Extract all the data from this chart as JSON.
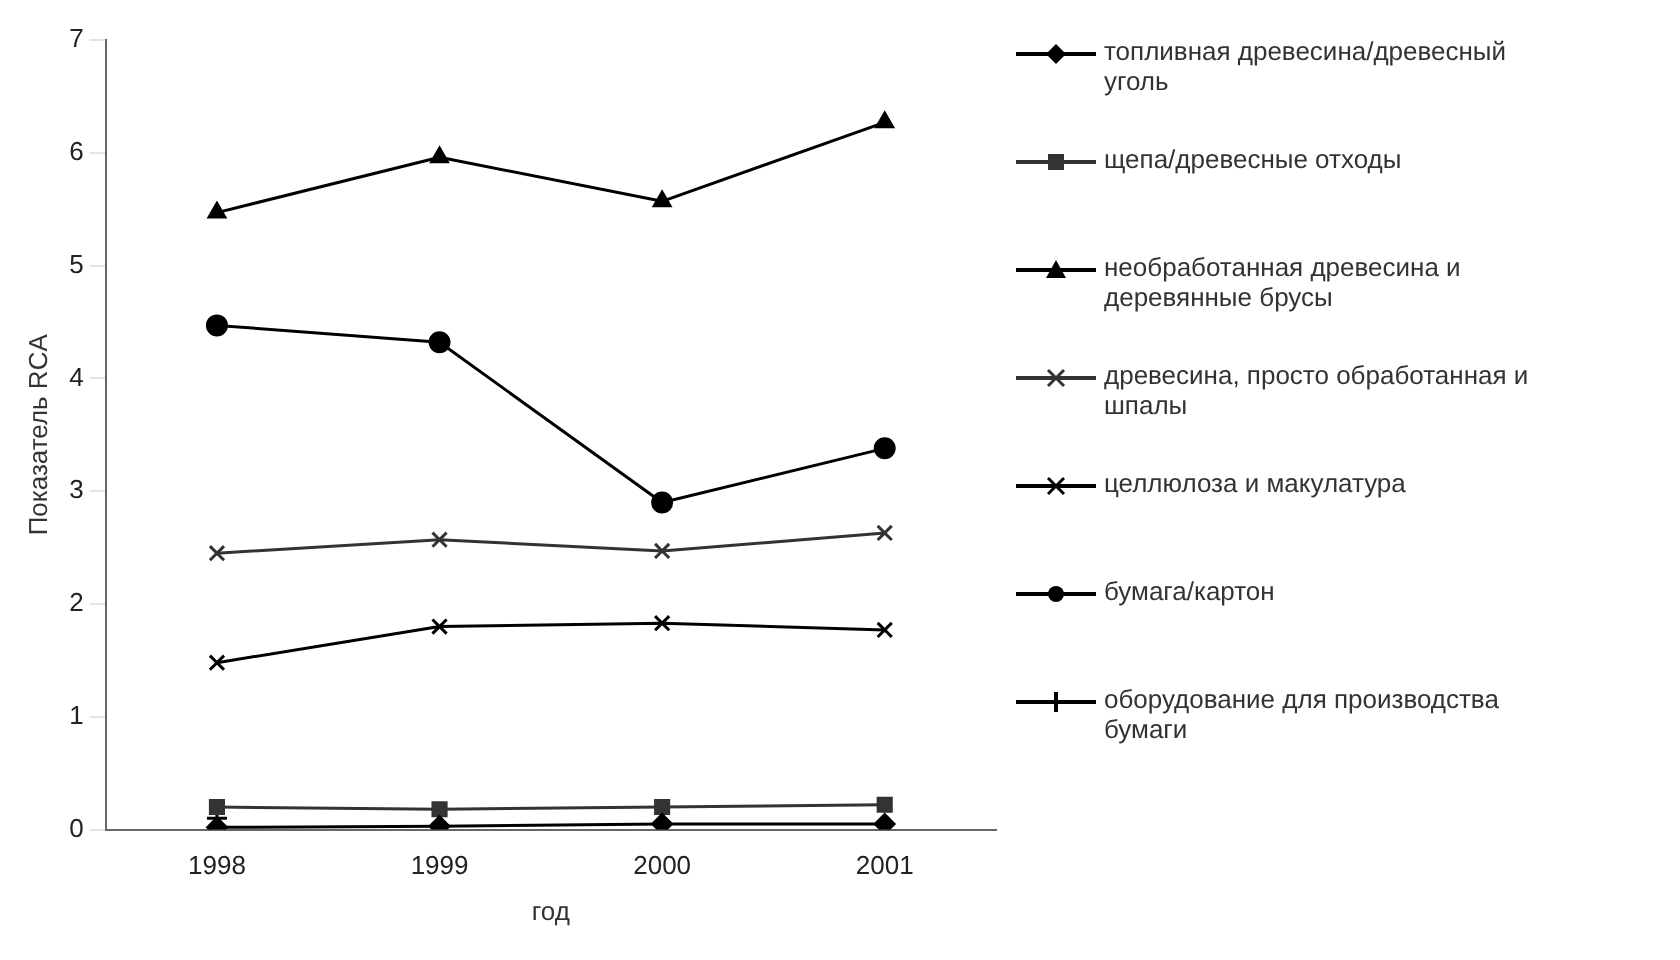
{
  "chart_data": {
    "type": "line",
    "xlabel": "год",
    "ylabel": "Показатель RCA",
    "categories": [
      "1998",
      "1999",
      "2000",
      "2001"
    ],
    "ylim": [
      0,
      7
    ],
    "yticks": [
      0,
      1,
      2,
      3,
      4,
      5,
      6,
      7
    ],
    "grid": false,
    "legend": "right",
    "line_style": "solid",
    "series": [
      {
        "name": "топливная древесина/древесный уголь",
        "color": "#000000",
        "marker": "diamond",
        "values": [
          0.02,
          0.03,
          0.05,
          0.05
        ]
      },
      {
        "name": "щепа/древесные отходы",
        "color": "#333333",
        "marker": "square",
        "values": [
          0.2,
          0.18,
          0.2,
          0.22
        ]
      },
      {
        "name": "необработанная древесина и деревянные брусы",
        "color": "#000000",
        "marker": "triangle",
        "values": [
          5.47,
          5.96,
          5.57,
          6.27
        ]
      },
      {
        "name": "древесина, просто обработанная и шпалы",
        "color": "#333333",
        "marker": "cross",
        "values": [
          2.45,
          2.57,
          2.47,
          2.63
        ]
      },
      {
        "name": "целлюлоза и макулатура",
        "color": "#000000",
        "marker": "cross",
        "values": [
          1.48,
          1.8,
          1.83,
          1.77
        ]
      },
      {
        "name": "бумага/картон",
        "color": "#000000",
        "marker": "circle",
        "values": [
          4.47,
          4.32,
          2.9,
          3.38
        ]
      },
      {
        "name": "оборудование для производства бумаги",
        "color": "#000000",
        "marker": "plus",
        "values": [
          0.1,
          null,
          null,
          null
        ]
      }
    ]
  }
}
